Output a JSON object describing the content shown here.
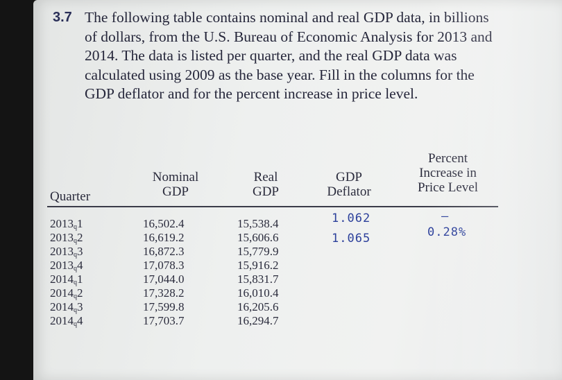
{
  "problem": {
    "number": "3.7",
    "text": "The following table contains nominal and real GDP data, in billions of dollars, from the U.S. Bureau of Economic Analysis for 2013 and 2014. The data is listed per quarter, and the real GDP data was calculated using 2009 as the base year. Fill in the columns for the GDP deflator and for the percent increase in price level."
  },
  "table": {
    "headers": {
      "quarter": "Quarter",
      "nominal_line1": "Nominal",
      "nominal_line2": "GDP",
      "real_line1": "Real",
      "real_line2": "GDP",
      "deflator_line1": "GDP",
      "deflator_line2": "Deflator",
      "percent_line1": "Percent",
      "percent_line2": "Increase in",
      "percent_line3": "Price Level"
    },
    "rows": [
      {
        "year": "2013",
        "q": "q",
        "n": "1",
        "nominal": "16,502.4",
        "real": "15,538.4"
      },
      {
        "year": "2013",
        "q": "q",
        "n": "2",
        "nominal": "16,619.2",
        "real": "15,606.6"
      },
      {
        "year": "2013",
        "q": "q",
        "n": "3",
        "nominal": "16,872.3",
        "real": "15,779.9"
      },
      {
        "year": "2013",
        "q": "q",
        "n": "4",
        "nominal": "17,078.3",
        "real": "15,916.2"
      },
      {
        "year": "2014",
        "q": "q",
        "n": "1",
        "nominal": "17,044.0",
        "real": "15,831.7"
      },
      {
        "year": "2014",
        "q": "q",
        "n": "2",
        "nominal": "17,328.2",
        "real": "16,010.4"
      },
      {
        "year": "2014",
        "q": "q",
        "n": "3",
        "nominal": "17,599.8",
        "real": "16,205.6"
      },
      {
        "year": "2014",
        "q": "q",
        "n": "4",
        "nominal": "17,703.7",
        "real": "16,294.7"
      }
    ],
    "handwritten": {
      "deflator": [
        "1.062",
        "1.065"
      ],
      "percent": [
        "—",
        "0.28%"
      ]
    }
  }
}
